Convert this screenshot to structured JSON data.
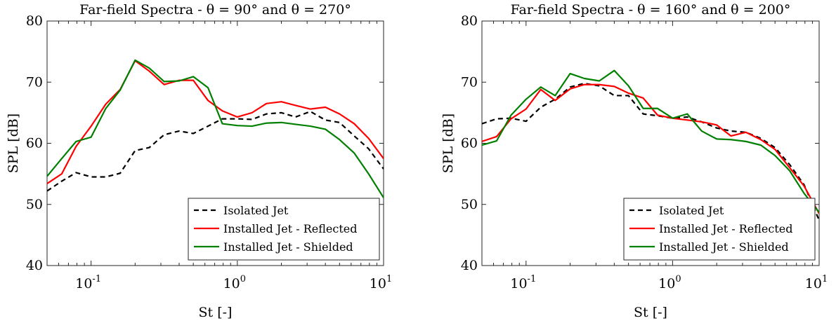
{
  "chart_data": [
    {
      "type": "line",
      "title": "Far-field Spectra - θ = 90° and θ = 270°",
      "xlabel": "St [-]",
      "ylabel": "SPL [dB]",
      "xscale": "log",
      "xlim": [
        0.05,
        10
      ],
      "ylim": [
        40,
        80
      ],
      "yticks": [
        "40",
        "50",
        "60",
        "70",
        "80"
      ],
      "xticks": [
        {
          "base": "10",
          "exp": "-1",
          "value": 0.1
        },
        {
          "base": "10",
          "exp": "0",
          "value": 1
        },
        {
          "base": "10",
          "exp": "1",
          "value": 10
        }
      ],
      "grid": false,
      "legend_position": "bottom-right",
      "series": [
        {
          "name": "Isolated Jet",
          "color": "#000000",
          "style": "dashed",
          "x": [
            0.05,
            0.063,
            0.079,
            0.1,
            0.126,
            0.158,
            0.2,
            0.25,
            0.316,
            0.4,
            0.5,
            0.63,
            0.79,
            1.0,
            1.26,
            1.58,
            2.0,
            2.5,
            3.16,
            4.0,
            5.0,
            6.3,
            7.9,
            10.0
          ],
          "y": [
            52.2,
            53.8,
            55.2,
            54.5,
            54.5,
            55.1,
            58.8,
            59.3,
            61.4,
            62.0,
            61.6,
            62.8,
            64.0,
            64.0,
            63.9,
            64.8,
            65.0,
            64.3,
            65.2,
            63.8,
            63.4,
            61.2,
            59.1,
            55.8
          ]
        },
        {
          "name": "Installed Jet - Reflected",
          "color": "#ff0000",
          "style": "solid",
          "x": [
            0.05,
            0.063,
            0.079,
            0.1,
            0.126,
            0.158,
            0.2,
            0.25,
            0.316,
            0.4,
            0.5,
            0.63,
            0.79,
            1.0,
            1.26,
            1.58,
            2.0,
            2.5,
            3.16,
            4.0,
            5.0,
            6.3,
            7.9,
            10.0
          ],
          "y": [
            53.4,
            55.0,
            59.5,
            62.8,
            66.4,
            68.8,
            73.5,
            71.8,
            69.6,
            70.3,
            70.3,
            67.0,
            65.3,
            64.3,
            65.0,
            66.5,
            66.8,
            66.2,
            65.6,
            65.9,
            64.8,
            63.2,
            60.8,
            57.5
          ]
        },
        {
          "name": "Installed Jet - Shielded",
          "color": "#008000",
          "style": "solid",
          "x": [
            0.05,
            0.063,
            0.079,
            0.1,
            0.126,
            0.158,
            0.2,
            0.25,
            0.316,
            0.4,
            0.5,
            0.63,
            0.79,
            1.0,
            1.26,
            1.58,
            2.0,
            2.5,
            3.16,
            4.0,
            5.0,
            6.3,
            7.9,
            10.0
          ],
          "y": [
            54.6,
            57.5,
            60.3,
            61.0,
            65.7,
            68.7,
            73.6,
            72.3,
            70.1,
            70.2,
            70.9,
            69.1,
            63.2,
            62.9,
            62.8,
            63.3,
            63.4,
            63.1,
            62.8,
            62.3,
            60.6,
            58.4,
            55.0,
            51.1
          ]
        }
      ]
    },
    {
      "type": "line",
      "title": "Far-field Spectra - θ = 160° and θ = 200°",
      "xlabel": "St [-]",
      "ylabel": "SPL [dB]",
      "xscale": "log",
      "xlim": [
        0.05,
        10
      ],
      "ylim": [
        40,
        80
      ],
      "yticks": [
        "40",
        "50",
        "60",
        "70",
        "80"
      ],
      "xticks": [
        {
          "base": "10",
          "exp": "-1",
          "value": 0.1
        },
        {
          "base": "10",
          "exp": "0",
          "value": 1
        },
        {
          "base": "10",
          "exp": "1",
          "value": 10
        }
      ],
      "grid": false,
      "legend_position": "bottom-right",
      "series": [
        {
          "name": "Isolated Jet",
          "color": "#000000",
          "style": "dashed",
          "x": [
            0.05,
            0.063,
            0.079,
            0.1,
            0.126,
            0.158,
            0.2,
            0.25,
            0.316,
            0.4,
            0.5,
            0.63,
            0.79,
            1.0,
            1.26,
            1.58,
            2.0,
            2.5,
            3.16,
            4.0,
            5.0,
            6.3,
            7.9,
            10.0
          ],
          "y": [
            63.2,
            64.0,
            64.1,
            63.6,
            65.9,
            67.2,
            69.2,
            69.8,
            69.4,
            67.8,
            67.8,
            64.8,
            64.5,
            64.1,
            64.3,
            63.5,
            62.5,
            62.0,
            61.8,
            60.8,
            59.3,
            56.5,
            53.2,
            47.4
          ]
        },
        {
          "name": "Installed Jet - Reflected",
          "color": "#ff0000",
          "style": "solid",
          "x": [
            0.05,
            0.063,
            0.079,
            0.1,
            0.126,
            0.158,
            0.2,
            0.25,
            0.316,
            0.4,
            0.5,
            0.63,
            0.79,
            1.0,
            1.26,
            1.58,
            2.0,
            2.5,
            3.16,
            4.0,
            5.0,
            6.3,
            7.9,
            10.0
          ],
          "y": [
            60.3,
            61.1,
            64.0,
            65.6,
            68.8,
            67.0,
            68.9,
            69.6,
            69.6,
            69.3,
            68.2,
            67.4,
            64.6,
            64.1,
            63.8,
            63.5,
            63.0,
            61.2,
            61.8,
            60.6,
            59.0,
            56.0,
            53.0,
            48.5
          ]
        },
        {
          "name": "Installed Jet - Shielded",
          "color": "#008000",
          "style": "solid",
          "x": [
            0.05,
            0.063,
            0.079,
            0.1,
            0.126,
            0.158,
            0.2,
            0.25,
            0.316,
            0.4,
            0.5,
            0.63,
            0.79,
            1.0,
            1.26,
            1.58,
            2.0,
            2.5,
            3.16,
            4.0,
            5.0,
            6.3,
            7.9,
            10.0
          ],
          "y": [
            59.7,
            60.4,
            64.6,
            67.2,
            69.2,
            67.8,
            71.4,
            70.6,
            70.2,
            71.9,
            69.4,
            65.7,
            65.7,
            64.1,
            64.8,
            62.0,
            60.7,
            60.6,
            60.3,
            59.7,
            58.0,
            55.5,
            51.8,
            48.7
          ]
        }
      ]
    }
  ]
}
